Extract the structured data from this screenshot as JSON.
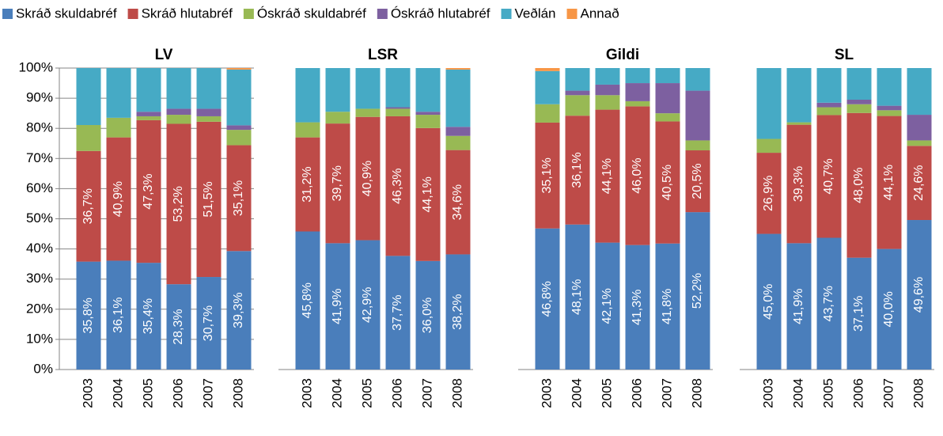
{
  "chart_data": [
    {
      "type": "bar",
      "stacked": true,
      "title": "LV",
      "categories": [
        "2003",
        "2004",
        "2005",
        "2006",
        "2007",
        "2008"
      ],
      "ylim": [
        0,
        100
      ],
      "grid": true,
      "yticks": [
        {
          "value": 0,
          "label": "0%"
        },
        {
          "value": 10,
          "label": "10%"
        },
        {
          "value": 20,
          "label": "20%"
        },
        {
          "value": 30,
          "label": "30%"
        },
        {
          "value": 40,
          "label": "40%"
        },
        {
          "value": 50,
          "label": "50%"
        },
        {
          "value": 60,
          "label": "60%"
        },
        {
          "value": 70,
          "label": "70%"
        },
        {
          "value": 80,
          "label": "80%"
        },
        {
          "value": 90,
          "label": "90%"
        },
        {
          "value": 100,
          "label": "100%"
        }
      ],
      "series": [
        {
          "name": "Skráð skuldabréf",
          "color": "#4a7ebb",
          "values": [
            35.8,
            36.1,
            35.4,
            28.3,
            30.7,
            39.3
          ],
          "value_labels": [
            "35,8%",
            "36,1%",
            "35,4%",
            "28,3%",
            "30,7%",
            "39,3%"
          ]
        },
        {
          "name": "Skráð hlutabréf",
          "color": "#be4b48",
          "values": [
            36.7,
            40.9,
            47.3,
            53.2,
            51.5,
            35.1
          ],
          "value_labels": [
            "36,7%",
            "40,9%",
            "47,3%",
            "53,2%",
            "51,5%",
            "35,1%"
          ]
        },
        {
          "name": "Óskráð skuldabréf",
          "color": "#98b954",
          "values": [
            8.6,
            6.5,
            1.3,
            3.0,
            1.8,
            5.1
          ]
        },
        {
          "name": "Óskráð hlutabréf",
          "color": "#7d60a0",
          "values": [
            0,
            0,
            1.5,
            2.0,
            2.5,
            1.5
          ]
        },
        {
          "name": "Veðlán",
          "color": "#46aac5",
          "values": [
            18.9,
            16.5,
            14.5,
            13.5,
            13.5,
            18.5
          ]
        },
        {
          "name": "Annað",
          "color": "#f79646",
          "values": [
            0,
            0,
            0,
            0,
            0,
            0.5
          ]
        }
      ]
    },
    {
      "type": "bar",
      "stacked": true,
      "title": "LSR",
      "categories": [
        "2003",
        "2004",
        "2005",
        "2006",
        "2007",
        "2008"
      ],
      "ylim": [
        0,
        100
      ],
      "series": [
        {
          "values": [
            45.8,
            41.9,
            42.9,
            37.7,
            36.0,
            38.2
          ],
          "value_labels": [
            "45,8%",
            "41,9%",
            "42,9%",
            "37,7%",
            "36,0%",
            "38,2%"
          ]
        },
        {
          "values": [
            31.2,
            39.7,
            40.9,
            46.3,
            44.1,
            34.6
          ],
          "value_labels": [
            "31,2%",
            "39,7%",
            "40,9%",
            "46,3%",
            "44,1%",
            "34,6%"
          ]
        },
        {
          "values": [
            5.0,
            3.9,
            2.7,
            2.5,
            4.4,
            4.7
          ]
        },
        {
          "values": [
            0,
            0,
            0,
            0.5,
            1.0,
            3.0
          ]
        },
        {
          "values": [
            18.0,
            14.5,
            13.5,
            13.0,
            14.5,
            19.0
          ]
        },
        {
          "values": [
            0,
            0,
            0,
            0,
            0,
            0.5
          ]
        }
      ]
    },
    {
      "type": "bar",
      "stacked": true,
      "title": "Gildi",
      "categories": [
        "2003",
        "2004",
        "2005",
        "2006",
        "2007",
        "2008"
      ],
      "ylim": [
        0,
        100
      ],
      "series": [
        {
          "values": [
            46.8,
            48.1,
            42.1,
            41.3,
            41.8,
            52.2
          ],
          "value_labels": [
            "46,8%",
            "48,1%",
            "42,1%",
            "41,3%",
            "41,8%",
            "52,2%"
          ]
        },
        {
          "values": [
            35.1,
            36.1,
            44.1,
            46.0,
            40.5,
            20.5
          ],
          "value_labels": [
            "35,1%",
            "36,1%",
            "44,1%",
            "46,0%",
            "40,5%",
            "20,5%"
          ]
        },
        {
          "values": [
            6.1,
            6.8,
            4.8,
            1.7,
            2.7,
            3.3
          ]
        },
        {
          "values": [
            0,
            1.5,
            3.5,
            6.0,
            10.0,
            16.5
          ]
        },
        {
          "values": [
            11.0,
            7.5,
            5.5,
            5.0,
            5.0,
            7.5
          ]
        },
        {
          "values": [
            1.0,
            0,
            0,
            0,
            0,
            0
          ]
        }
      ]
    },
    {
      "type": "bar",
      "stacked": true,
      "title": "SL",
      "categories": [
        "2003",
        "2004",
        "2005",
        "2006",
        "2007",
        "2008"
      ],
      "ylim": [
        0,
        100
      ],
      "series": [
        {
          "values": [
            45.0,
            41.9,
            43.7,
            37.1,
            40.0,
            49.6
          ],
          "value_labels": [
            "45,0%",
            "41,9%",
            "43,7%",
            "37,1%",
            "40,0%",
            "49,6%"
          ]
        },
        {
          "values": [
            26.9,
            39.3,
            40.7,
            48.0,
            44.1,
            24.6
          ],
          "value_labels": [
            "26,9%",
            "39,3%",
            "40,7%",
            "48,0%",
            "44,1%",
            "24,6%"
          ]
        },
        {
          "values": [
            4.6,
            0.8,
            2.6,
            2.9,
            1.9,
            1.8
          ]
        },
        {
          "values": [
            0,
            0,
            1.5,
            1.5,
            1.5,
            8.5
          ]
        },
        {
          "values": [
            23.5,
            18.0,
            11.5,
            10.5,
            12.5,
            15.5
          ]
        },
        {
          "values": [
            0,
            0,
            0,
            0,
            0,
            0
          ]
        }
      ]
    }
  ]
}
